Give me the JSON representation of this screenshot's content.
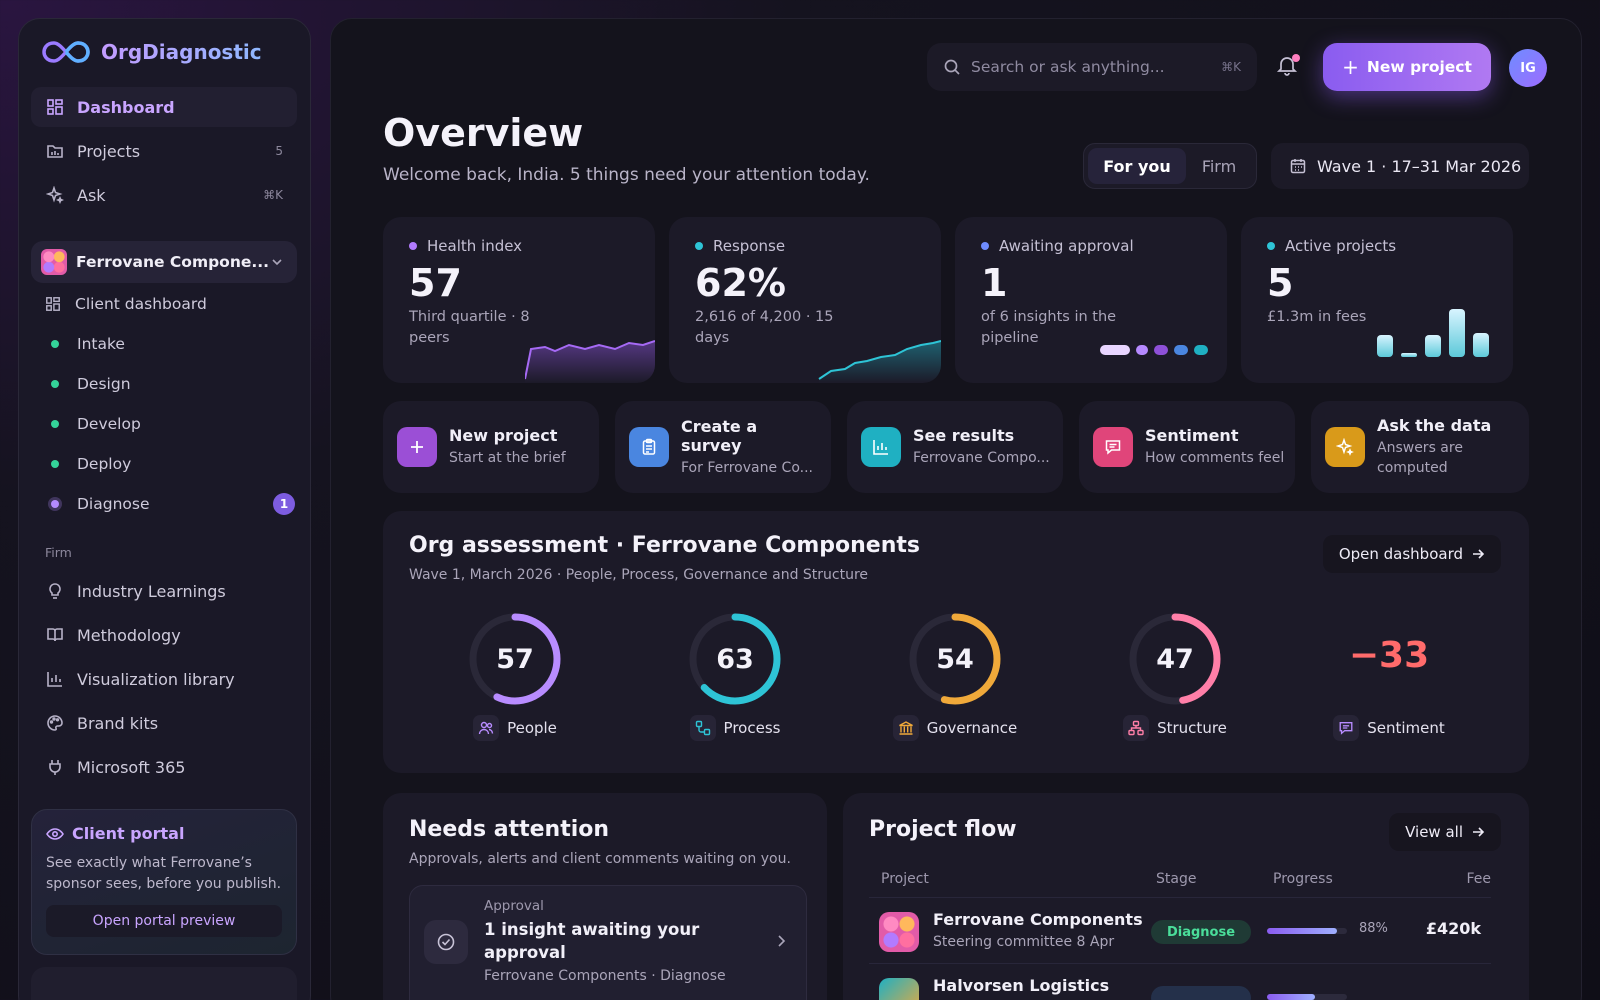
{
  "app": {
    "name": "OrgDiagnostic"
  },
  "sidebar": {
    "nav": [
      {
        "label": "Dashboard",
        "icon": "grid-icon",
        "right": ""
      },
      {
        "label": "Projects",
        "icon": "folder-icon",
        "right": "5"
      },
      {
        "label": "Ask",
        "icon": "sparkle-icon",
        "right": "⌘K"
      }
    ],
    "client": {
      "name": "Ferrovane Compone...",
      "dashboard_label": "Client dashboard"
    },
    "stages": [
      {
        "label": "Intake"
      },
      {
        "label": "Design"
      },
      {
        "label": "Develop"
      },
      {
        "label": "Deploy"
      },
      {
        "label": "Diagnose",
        "badge": "1"
      }
    ],
    "firm_label": "Firm",
    "firm_items": [
      {
        "label": "Industry Learnings",
        "icon": "lightbulb-icon"
      },
      {
        "label": "Methodology",
        "icon": "book-icon"
      },
      {
        "label": "Visualization library",
        "icon": "bar-chart-icon"
      },
      {
        "label": "Brand kits",
        "icon": "palette-icon"
      },
      {
        "label": "Microsoft 365",
        "icon": "plug-icon"
      }
    ],
    "portal": {
      "title": "Client portal",
      "description": "See exactly what Ferrovane’s sponsor sees, before you publish.",
      "button": "Open portal preview"
    }
  },
  "header": {
    "search_placeholder": "Search or ask anything...",
    "search_shortcut": "⌘K",
    "new_project": "New project",
    "avatar_initials": "IG"
  },
  "overview": {
    "title": "Overview",
    "subtitle": "Welcome back, India. 5 things need your attention today.",
    "segments": [
      "For you",
      "Firm"
    ],
    "date_range": "Wave 1 · 17–31 Mar 2026"
  },
  "stats": [
    {
      "label": "Health index",
      "value": "57",
      "sub": "Third quartile · 8 peers",
      "color": "#b27bff"
    },
    {
      "label": "Response",
      "value": "62%",
      "sub": "2,616 of 4,200 · 15 days",
      "color": "#2ec4d6"
    },
    {
      "label": "Awaiting approval",
      "value": "1",
      "sub": "of 6 insights in the pipeline",
      "color": "#6f8cff"
    },
    {
      "label": "Active projects",
      "value": "5",
      "sub": "£1.3m in fees",
      "color": "#2ec4d6"
    }
  ],
  "actions": [
    {
      "title": "New project",
      "sub": "Start at the brief",
      "color": "#9b4fd6",
      "icon": "plus-icon"
    },
    {
      "title": "Create a survey",
      "sub": "For Ferrovane Co...",
      "color": "#4a86e0",
      "icon": "clipboard-icon"
    },
    {
      "title": "See results",
      "sub": "Ferrovane Compo...",
      "color": "#1fb0c2",
      "icon": "bar-chart-icon"
    },
    {
      "title": "Sentiment",
      "sub": "How comments feel",
      "color": "#e0457a",
      "icon": "message-icon"
    },
    {
      "title": "Ask the data",
      "sub": "Answers are computed",
      "color": "#d99a1a",
      "icon": "sparkle-icon"
    }
  ],
  "assessment": {
    "title": "Org assessment · Ferrovane Components",
    "subtitle": "Wave 1, March 2026 · People, Process, Governance and Structure",
    "open_button": "Open dashboard",
    "scores": [
      {
        "label": "People",
        "value": 57,
        "color": "#b88cff",
        "icon": "people-icon"
      },
      {
        "label": "Process",
        "value": 63,
        "color": "#2ec4d6",
        "icon": "process-icon"
      },
      {
        "label": "Governance",
        "value": 54,
        "color": "#f0a93a",
        "icon": "bank-icon"
      },
      {
        "label": "Structure",
        "value": 47,
        "color": "#ff7fa8",
        "icon": "org-chart-icon"
      }
    ],
    "sentiment": {
      "label": "Sentiment",
      "value": "−33",
      "color": "#ff6b6b"
    }
  },
  "attention": {
    "title": "Needs attention",
    "subtitle": "Approvals, alerts and client comments waiting on you.",
    "item": {
      "kind": "Approval",
      "title": "1 insight awaiting your approval",
      "sub": "Ferrovane Components · Diagnose"
    }
  },
  "flow": {
    "title": "Project flow",
    "view_all": "View all",
    "columns": [
      "Project",
      "Stage",
      "Progress",
      "Fee"
    ],
    "rows": [
      {
        "name": "Ferrovane Components",
        "sub": "Steering committee 8 Apr",
        "stage": "Diagnose",
        "progress": 0.88,
        "progress_label": "88%",
        "fee": "£420k"
      },
      {
        "name": "Halvorsen Logistics",
        "sub": "",
        "stage": "",
        "progress": 0.6,
        "progress_label": "",
        "fee": ""
      }
    ]
  }
}
